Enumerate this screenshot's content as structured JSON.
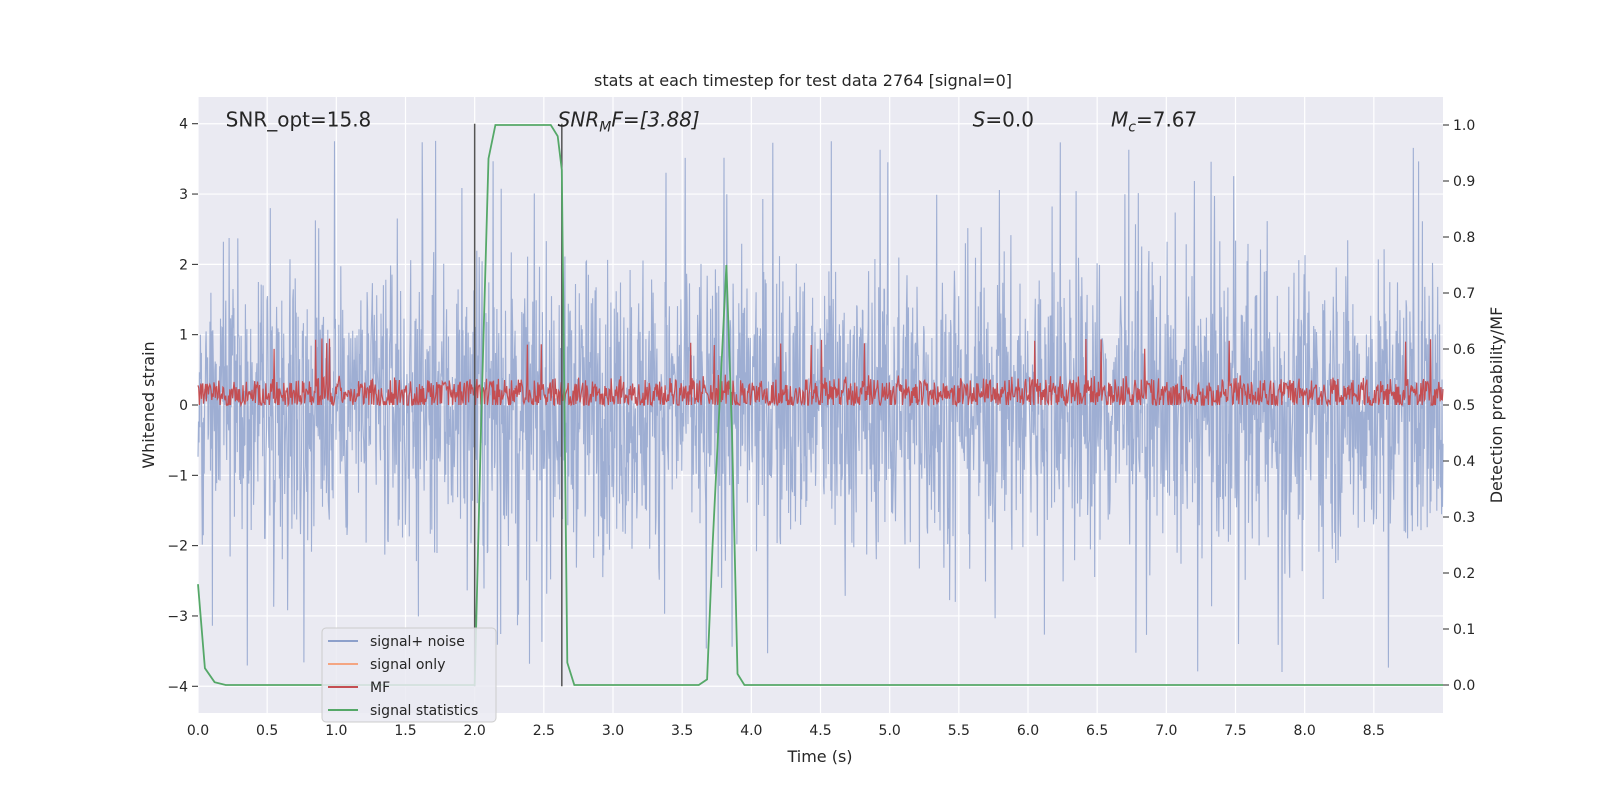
{
  "chart_data": {
    "type": "line",
    "title": "stats at each timestep for test data 2764 [signal=0]",
    "xlabel": "Time (s)",
    "ylabel_left": "Whitened strain",
    "ylabel_right": "Detection probability/MF",
    "xlim": [
      0.0,
      9.0
    ],
    "ylim_left": [
      -4.38,
      4.38
    ],
    "ylim_right": [
      -0.05,
      1.05
    ],
    "grid": true,
    "x_ticks": [
      0.0,
      0.5,
      1.0,
      1.5,
      2.0,
      2.5,
      3.0,
      3.5,
      4.0,
      4.5,
      5.0,
      5.5,
      6.0,
      6.5,
      7.0,
      7.5,
      8.0,
      8.5
    ],
    "x_tick_labels": [
      "0.0",
      "0.5",
      "1.0",
      "1.5",
      "2.0",
      "2.5",
      "3.0",
      "3.5",
      "4.0",
      "4.5",
      "5.0",
      "5.5",
      "6.0",
      "6.5",
      "7.0",
      "7.5",
      "8.0",
      "8.5"
    ],
    "y_left_ticks": [
      -4,
      -3,
      -2,
      -1,
      0,
      1,
      2,
      3,
      4
    ],
    "y_left_tick_labels": [
      "−4",
      "−3",
      "−2",
      "−1",
      "0",
      "1",
      "2",
      "3",
      "4"
    ],
    "y_right_ticks": [
      0.0,
      0.1,
      0.2,
      0.3,
      0.4,
      0.5,
      0.6,
      0.7,
      0.8,
      0.9,
      1.0
    ],
    "y_right_tick_labels": [
      "0.0",
      "0.1",
      "0.2",
      "0.3",
      "0.4",
      "0.5",
      "0.6",
      "0.7",
      "0.8",
      "0.9",
      "1.0"
    ],
    "annotations": [
      {
        "text": "SNR_opt=15.8",
        "x": 0.2,
        "y": 4.0
      },
      {
        "text": "SNR",
        "sub": "M",
        "suffix": "F=[3.88]",
        "italic": true,
        "x": 2.6,
        "y": 4.0
      },
      {
        "text": "S",
        "suffix": "=0.0",
        "italic": true,
        "x": 5.6,
        "y": 4.0
      },
      {
        "text": "M",
        "sub": "c",
        "suffix": "=7.67",
        "italic": true,
        "x": 6.6,
        "y": 4.0
      }
    ],
    "vertical_lines": [
      2.0,
      2.63
    ],
    "legend": {
      "placement": "lower-left",
      "entries": [
        {
          "label": "signal+ noise",
          "color": "#8da0cb"
        },
        {
          "label": "signal only",
          "color": "#f4a582"
        },
        {
          "label": "MF",
          "color": "#c44e52"
        },
        {
          "label": "signal statistics",
          "color": "#55a868"
        }
      ]
    },
    "series": [
      {
        "name": "signal+ noise",
        "axis": "left",
        "color": "#9aabd1",
        "description": "noise trace, amplitude ~±2.5 with spikes to 3.7 / -4",
        "range_min": -4.0,
        "range_max": 4.0
      },
      {
        "name": "MF",
        "axis": "right",
        "color": "#c44e52",
        "description": "matched-filter output, baseline ~0.5 with fluctuations up to ~0.62",
        "range_min": 0.5,
        "range_max": 0.62
      },
      {
        "name": "signal statistics",
        "axis": "right",
        "color": "#55a868",
        "x": [
          0.0,
          0.05,
          0.12,
          0.2,
          0.5,
          1.0,
          1.5,
          1.9,
          2.0,
          2.05,
          2.1,
          2.15,
          2.5,
          2.55,
          2.6,
          2.63,
          2.67,
          2.72,
          2.8,
          3.0,
          3.5,
          3.62,
          3.68,
          3.72,
          3.78,
          3.82,
          3.86,
          3.9,
          3.95,
          4.5,
          5.0,
          6.0,
          7.0,
          8.0,
          9.0
        ],
        "y": [
          0.18,
          0.03,
          0.005,
          0.0,
          0.0,
          0.0,
          0.0,
          0.0,
          0.0,
          0.5,
          0.94,
          1.0,
          1.0,
          1.0,
          0.98,
          0.92,
          0.04,
          0.0,
          0.0,
          0.0,
          0.0,
          0.0,
          0.01,
          0.25,
          0.55,
          0.75,
          0.45,
          0.02,
          0.0,
          0.0,
          0.0,
          0.0,
          0.0,
          0.0,
          0.0
        ]
      }
    ]
  }
}
